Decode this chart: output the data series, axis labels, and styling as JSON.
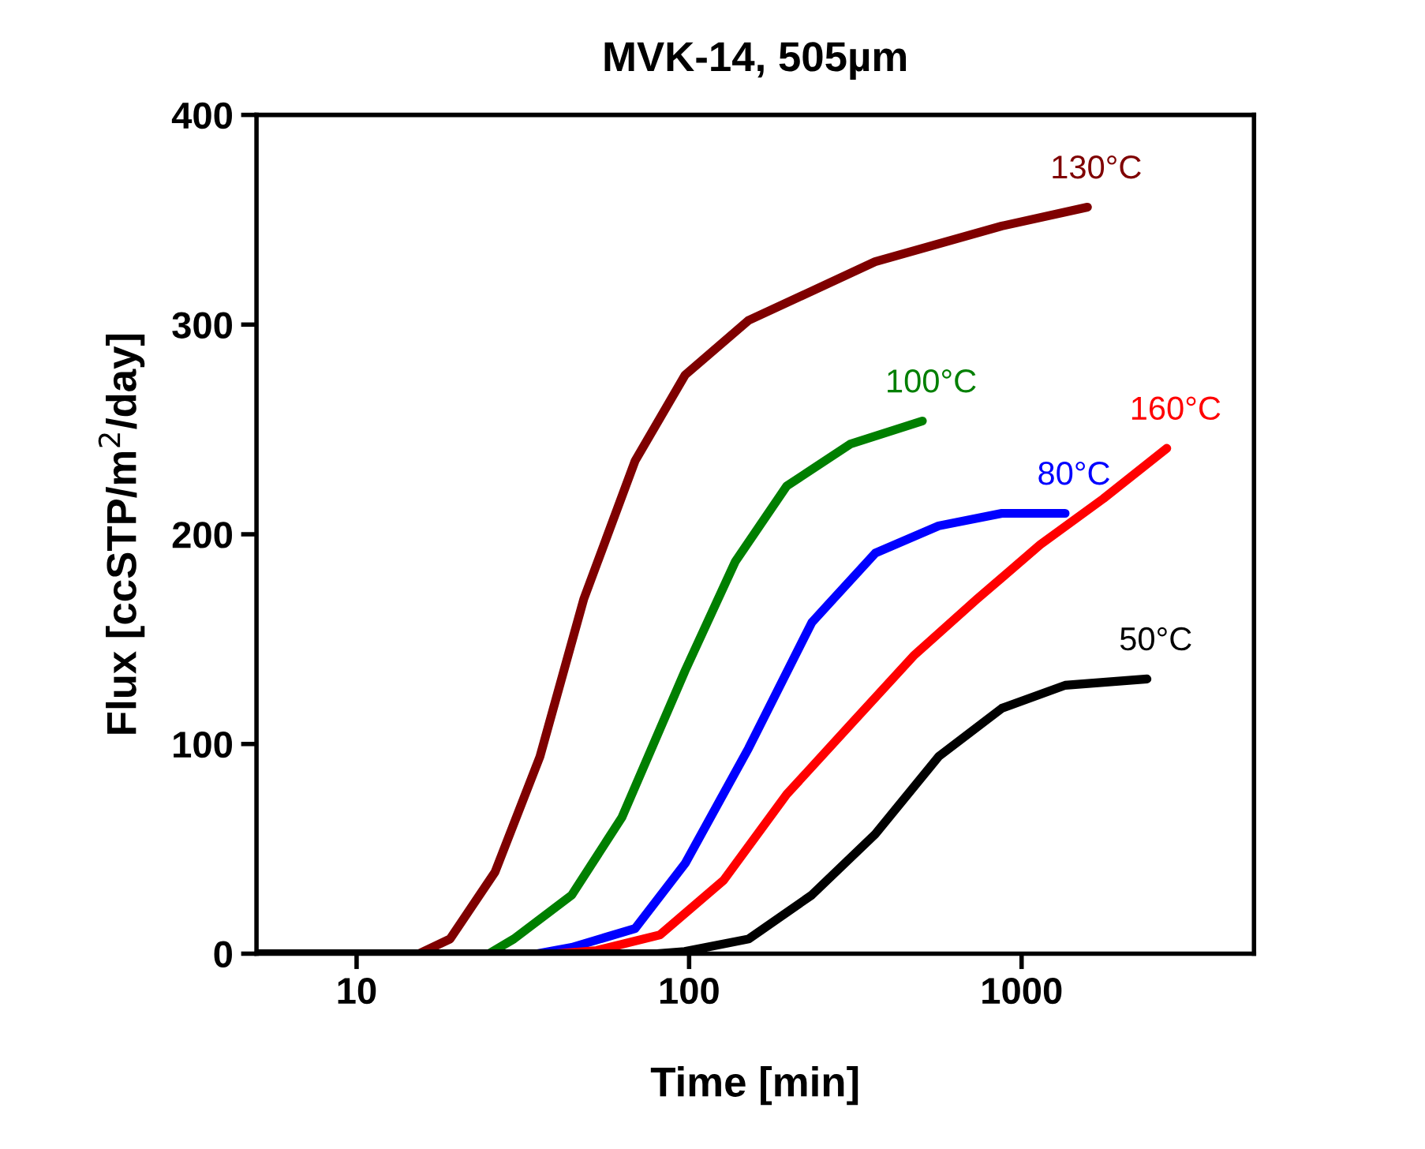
{
  "chart_data": {
    "type": "line",
    "title": "MVK-14, 505µm",
    "xlabel": "Time [min]",
    "ylabel": "Flux [ccSTP/m$^{2}$/day]",
    "log": "x",
    "xlim": [
      5,
      5000
    ],
    "xticks": [
      10,
      100,
      1000
    ],
    "ylim": [
      0,
      400
    ],
    "yticks": [
      0,
      100,
      200,
      300,
      400
    ],
    "grid": false,
    "legend": false,
    "marker": "none",
    "line_style": "solid",
    "series": [
      {
        "name": "130°C",
        "color": "#7f0000",
        "x": [
          5,
          15.4,
          19.1,
          26.1,
          35.6,
          48.2,
          68.8,
          97.3,
          150.9,
          362.6,
          872,
          1578
        ],
        "values": [
          0,
          0,
          7,
          39,
          94,
          169,
          235,
          276,
          302,
          330,
          347,
          356
        ]
      },
      {
        "name": "100°C",
        "color": "#007f00",
        "x": [
          5,
          25,
          29.7,
          44.4,
          62.8,
          97.3,
          137.7,
          196.6,
          305,
          503
        ],
        "values": [
          0,
          0,
          7,
          28,
          65,
          135,
          187,
          223,
          243,
          254
        ]
      },
      {
        "name": "80°C",
        "color": "#0000ff",
        "x": [
          5,
          35,
          44.4,
          68.8,
          97.3,
          151,
          234,
          363,
          563,
          872,
          1352
        ],
        "values": [
          0,
          0,
          3,
          12,
          43,
          98,
          158,
          191,
          204,
          210,
          210
        ]
      },
      {
        "name": "160°C",
        "color": "#ff0000",
        "x": [
          5,
          40,
          52.7,
          81.8,
          127,
          196.6,
          305,
          473,
          733,
          1137,
          1762,
          2733
        ],
        "values": [
          0,
          0,
          1.5,
          9,
          35,
          76,
          109,
          142,
          169,
          195,
          217,
          241
        ]
      },
      {
        "name": "50°C",
        "color": "#000000",
        "x": [
          5,
          80,
          97,
          151,
          234,
          363,
          563,
          872,
          1352,
          2383
        ],
        "values": [
          0,
          0,
          1,
          7,
          28,
          57,
          94,
          117,
          128,
          131
        ]
      }
    ]
  }
}
